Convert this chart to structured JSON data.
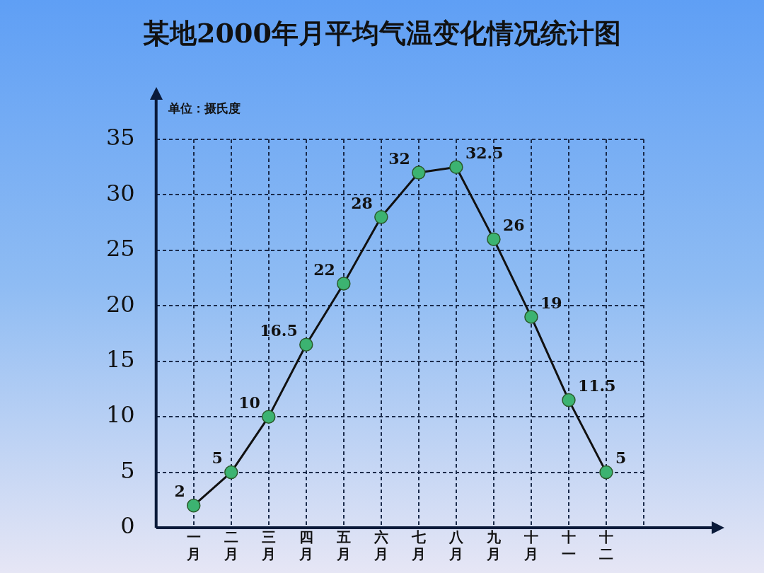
{
  "chart_data": {
    "type": "line",
    "title": "某地2000年月平均气温变化情况统计图",
    "annotations": [
      "单位：摄氏度"
    ],
    "categories": [
      "一月",
      "二月",
      "三月",
      "四月",
      "五月",
      "六月",
      "七月",
      "八月",
      "九月",
      "十月",
      "十一",
      "十二"
    ],
    "series": [
      {
        "color": "#111111",
        "values": [
          2,
          5,
          10,
          16.5,
          22,
          28,
          32,
          32.5,
          26,
          19,
          11.5,
          5
        ]
      }
    ],
    "ylim": [
      0,
      35
    ],
    "yticks": [
      0,
      5,
      10,
      15,
      20,
      25,
      30,
      35
    ],
    "grid": true,
    "marker": "circle",
    "line_style": "solid",
    "data_labels": true,
    "legend": false
  }
}
